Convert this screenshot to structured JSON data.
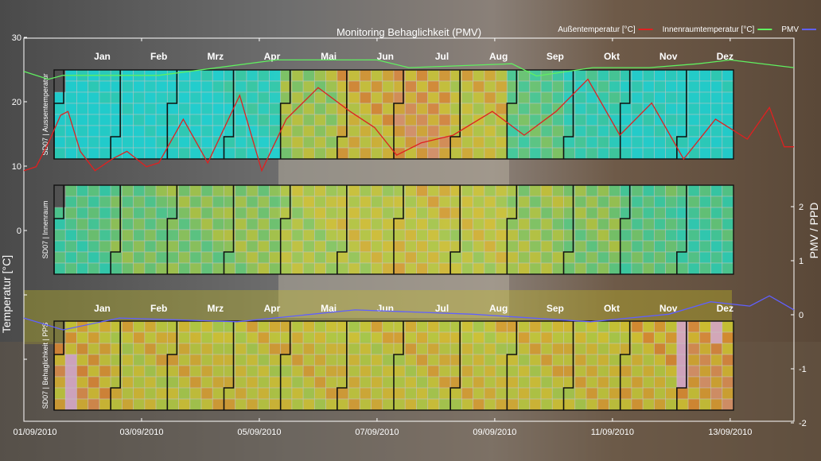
{
  "chart_data": {
    "type": "heatmap",
    "title": "Monitoring Behaglichkeit (PMV)",
    "ylabel_left": "Temperatur [°C]",
    "ylabel_right": "PMV / PPD",
    "ylim_left": [
      -30,
      30
    ],
    "yticks_left": [
      "30",
      "20",
      "10",
      "0"
    ],
    "ylim_right": [
      -2,
      2.5
    ],
    "yticks_right": [
      "2",
      "1",
      "0",
      "-1",
      "-2"
    ],
    "xlim": [
      "2010-09-01 00:00",
      "2010-09-14 02:00"
    ],
    "xticks": [
      "01/09/2010",
      "03/09/2010",
      "05/09/2010",
      "07/09/2010",
      "09/09/2010",
      "11/09/2010",
      "13/09/2010"
    ],
    "legend_placement": "top-right",
    "legend": [
      {
        "label": "Außentemperatur [°C]",
        "color": "#e02020"
      },
      {
        "label": "Innenraumtemperatur [°C]",
        "color": "#60f060"
      },
      {
        "label": "PMV",
        "color": "#6060ff"
      }
    ],
    "months": [
      "Jan",
      "Feb",
      "Mrz",
      "Apr",
      "Mai",
      "Jun",
      "Jul",
      "Aug",
      "Sep",
      "Okt",
      "Nov",
      "Dez"
    ],
    "colormap": [
      {
        "v": -1.0,
        "color": "#18e0e0"
      },
      {
        "v": -0.5,
        "color": "#30d8b0"
      },
      {
        "v": 0.0,
        "color": "#70d070"
      },
      {
        "v": 0.4,
        "color": "#b8d040"
      },
      {
        "v": 0.7,
        "color": "#d8c830"
      },
      {
        "v": 1.0,
        "color": "#e08830"
      },
      {
        "v": 1.5,
        "color": "#e0b0d0"
      }
    ],
    "panels": [
      {
        "label": "SD07 | Aussentemperatur",
        "month_values": [
          -1.0,
          -1.0,
          -0.9,
          -0.7,
          0.3,
          0.7,
          0.9,
          0.6,
          -0.2,
          -0.6,
          -0.9,
          -1.0
        ]
      },
      {
        "label": "SD07 | Innenraum",
        "month_values": [
          -0.3,
          0.0,
          0.1,
          0.2,
          0.4,
          0.5,
          0.6,
          0.5,
          0.3,
          0.1,
          -0.2,
          -0.4
        ]
      },
      {
        "label": "SD07 | Behaglichkeit | PPS",
        "month_values": [
          0.8,
          0.6,
          0.6,
          0.6,
          0.6,
          0.6,
          0.6,
          0.6,
          0.6,
          0.6,
          0.7,
          0.9
        ]
      }
    ],
    "series": [
      {
        "name": "Außentemperatur [°C]",
        "axis": "left",
        "points": [
          [
            "2010-09-01 00:00",
            9.3
          ],
          [
            "2010-09-01 05:00",
            9.9
          ],
          [
            "2010-09-01 10:00",
            13.6
          ],
          [
            "2010-09-01 15:00",
            17.9
          ],
          [
            "2010-09-01 18:00",
            18.5
          ],
          [
            "2010-09-01 23:00",
            12.3
          ],
          [
            "2010-09-02 05:00",
            9.3
          ],
          [
            "2010-09-02 12:00",
            11.1
          ],
          [
            "2010-09-02 18:00",
            12.3
          ],
          [
            "2010-09-03 02:00",
            9.9
          ],
          [
            "2010-09-03 07:00",
            10.5
          ],
          [
            "2010-09-03 17:00",
            17.3
          ],
          [
            "2010-09-04 03:00",
            10.5
          ],
          [
            "2010-09-04 16:00",
            21.0
          ],
          [
            "2010-09-05 01:00",
            9.3
          ],
          [
            "2010-09-05 11:00",
            17.3
          ],
          [
            "2010-09-06 00:00",
            22.2
          ],
          [
            "2010-09-06 13:00",
            18.5
          ],
          [
            "2010-09-06 23:00",
            16.0
          ],
          [
            "2010-09-07 08:00",
            11.7
          ],
          [
            "2010-09-07 18:00",
            13.6
          ],
          [
            "2010-09-08 07:00",
            14.8
          ],
          [
            "2010-09-08 23:00",
            18.5
          ],
          [
            "2010-09-09 12:00",
            14.8
          ],
          [
            "2010-09-10 01:00",
            18.5
          ],
          [
            "2010-09-10 14:00",
            23.5
          ],
          [
            "2010-09-11 03:00",
            14.8
          ],
          [
            "2010-09-11 16:00",
            19.8
          ],
          [
            "2010-09-12 05:00",
            11.1
          ],
          [
            "2010-09-12 18:00",
            17.3
          ],
          [
            "2010-09-13 07:00",
            14.2
          ],
          [
            "2010-09-13 16:00",
            19.1
          ],
          [
            "2010-09-13 22:00",
            13.0
          ],
          [
            "2010-09-14 02:00",
            13.0
          ]
        ]
      },
      {
        "name": "Innenraumtemperatur [°C]",
        "axis": "left",
        "points": [
          [
            "2010-09-01 00:00",
            24.7
          ],
          [
            "2010-09-01 10:00",
            23.5
          ],
          [
            "2010-09-01 16:00",
            24.1
          ],
          [
            "2010-09-03 07:00",
            24.1
          ],
          [
            "2010-09-05 07:00",
            26.5
          ],
          [
            "2010-09-07 00:00",
            26.5
          ],
          [
            "2010-09-07 13:00",
            25.3
          ],
          [
            "2010-09-09 07:00",
            25.9
          ],
          [
            "2010-09-09 17:00",
            24.0
          ],
          [
            "2010-09-10 16:00",
            25.3
          ],
          [
            "2010-09-11 15:00",
            25.3
          ],
          [
            "2010-09-12 11:00",
            25.9
          ],
          [
            "2010-09-13 00:00",
            26.5
          ],
          [
            "2010-09-14 02:00",
            25.3
          ]
        ]
      },
      {
        "name": "PMV",
        "axis": "right",
        "points": [
          [
            "2010-09-01 00:00",
            -0.06
          ],
          [
            "2010-09-01 16:00",
            -0.28
          ],
          [
            "2010-09-02 15:00",
            -0.06
          ],
          [
            "2010-09-04 15:00",
            -0.13
          ],
          [
            "2010-09-06 15:00",
            0.09
          ],
          [
            "2010-09-08 15:00",
            0.01
          ],
          [
            "2010-09-10 15:00",
            -0.13
          ],
          [
            "2010-09-11 23:00",
            0.01
          ],
          [
            "2010-09-12 16:00",
            0.24
          ],
          [
            "2010-09-13 08:00",
            0.16
          ],
          [
            "2010-09-13 16:00",
            0.35
          ],
          [
            "2010-09-14 02:00",
            0.09
          ]
        ]
      }
    ]
  }
}
